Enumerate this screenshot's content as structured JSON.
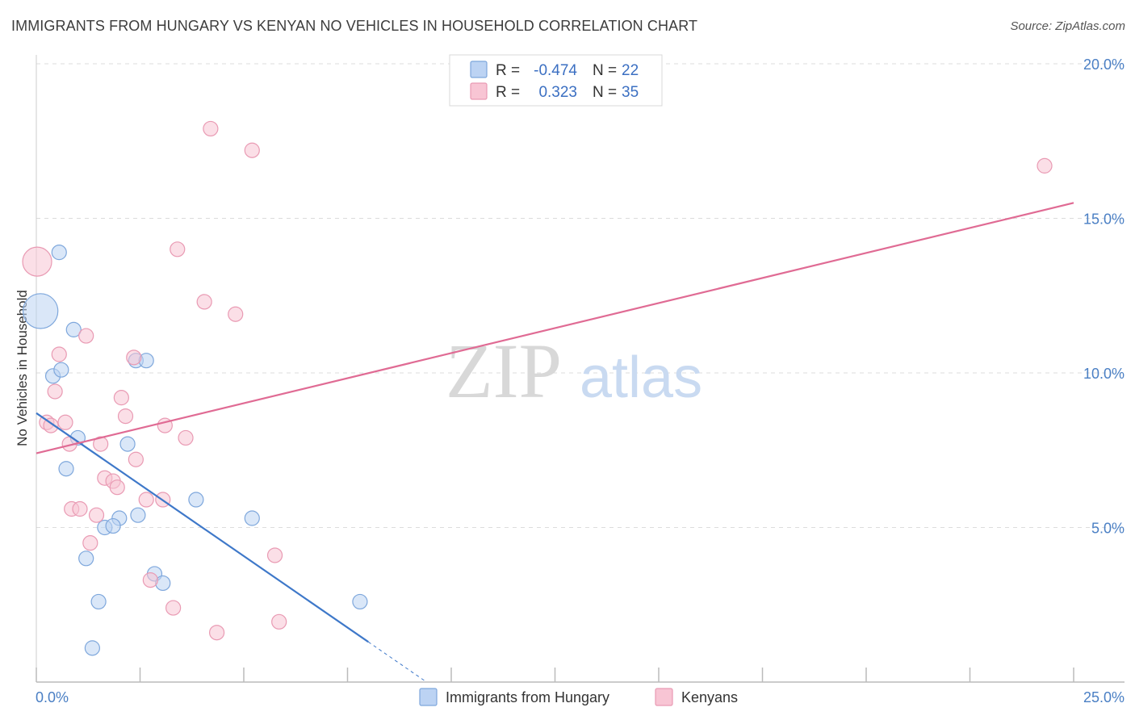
{
  "title": "IMMIGRANTS FROM HUNGARY VS KENYAN NO VEHICLES IN HOUSEHOLD CORRELATION CHART",
  "source": "Source: ZipAtlas.com",
  "watermark": {
    "zip": "ZIP",
    "atlas": "atlas"
  },
  "colors": {
    "blue_fill": "#bcd3f3",
    "blue_stroke": "#7ea7dc",
    "blue_line": "#3e78c9",
    "pink_fill": "#f8c5d4",
    "pink_stroke": "#e99ab3",
    "pink_line": "#e06b94",
    "grid": "#dcdcdc"
  },
  "legend": {
    "r_label": "R =",
    "n_label": "N =",
    "rows": [
      {
        "r": "-0.474",
        "n": "22"
      },
      {
        "r": "0.323",
        "n": "35"
      }
    ]
  },
  "chart_data": {
    "type": "scatter",
    "xlabel": "",
    "ylabel": "No Vehicles in Household",
    "xlim": [
      0,
      25
    ],
    "ylim": [
      0,
      20
    ],
    "x_tick_labels": [
      "0.0%",
      "25.0%"
    ],
    "y_ticks": [
      5,
      10,
      15,
      20
    ],
    "y_tick_labels": [
      "5.0%",
      "10.0%",
      "15.0%",
      "20.0%"
    ],
    "legend_placement": "top-center",
    "grid": true,
    "series": [
      {
        "name": "Immigrants from Hungary",
        "color": "#bcd3f3",
        "points": [
          {
            "x": 0.1,
            "y": 12.0,
            "s": 2.4
          },
          {
            "x": 0.55,
            "y": 13.9
          },
          {
            "x": 0.9,
            "y": 11.4
          },
          {
            "x": 0.4,
            "y": 9.9
          },
          {
            "x": 0.6,
            "y": 10.1
          },
          {
            "x": 2.4,
            "y": 10.4
          },
          {
            "x": 2.65,
            "y": 10.4
          },
          {
            "x": 1.0,
            "y": 7.9
          },
          {
            "x": 2.2,
            "y": 7.7
          },
          {
            "x": 0.72,
            "y": 6.9
          },
          {
            "x": 3.85,
            "y": 5.9
          },
          {
            "x": 5.2,
            "y": 5.3
          },
          {
            "x": 2.45,
            "y": 5.4
          },
          {
            "x": 2.0,
            "y": 5.3
          },
          {
            "x": 1.65,
            "y": 5.0
          },
          {
            "x": 1.85,
            "y": 5.05
          },
          {
            "x": 1.2,
            "y": 4.0
          },
          {
            "x": 2.85,
            "y": 3.5
          },
          {
            "x": 3.05,
            "y": 3.2
          },
          {
            "x": 1.5,
            "y": 2.6
          },
          {
            "x": 7.8,
            "y": 2.6
          },
          {
            "x": 1.35,
            "y": 1.1
          }
        ]
      },
      {
        "name": "Kenyans",
        "color": "#f8c5d4",
        "points": [
          {
            "x": 0.02,
            "y": 13.6,
            "s": 2.0
          },
          {
            "x": 4.2,
            "y": 17.9
          },
          {
            "x": 5.2,
            "y": 17.2
          },
          {
            "x": 24.3,
            "y": 16.7
          },
          {
            "x": 3.4,
            "y": 14.0
          },
          {
            "x": 4.05,
            "y": 12.3
          },
          {
            "x": 4.8,
            "y": 11.9
          },
          {
            "x": 1.2,
            "y": 11.2
          },
          {
            "x": 0.55,
            "y": 10.6
          },
          {
            "x": 2.35,
            "y": 10.5
          },
          {
            "x": 0.45,
            "y": 9.4
          },
          {
            "x": 2.05,
            "y": 9.2
          },
          {
            "x": 0.25,
            "y": 8.4
          },
          {
            "x": 0.35,
            "y": 8.3
          },
          {
            "x": 0.7,
            "y": 8.4
          },
          {
            "x": 2.15,
            "y": 8.6
          },
          {
            "x": 3.1,
            "y": 8.3
          },
          {
            "x": 3.6,
            "y": 7.9
          },
          {
            "x": 0.8,
            "y": 7.7
          },
          {
            "x": 1.55,
            "y": 7.7
          },
          {
            "x": 2.4,
            "y": 7.2
          },
          {
            "x": 1.65,
            "y": 6.6
          },
          {
            "x": 1.85,
            "y": 6.5
          },
          {
            "x": 1.95,
            "y": 6.3
          },
          {
            "x": 2.65,
            "y": 5.9
          },
          {
            "x": 3.05,
            "y": 5.9
          },
          {
            "x": 0.85,
            "y": 5.6
          },
          {
            "x": 1.05,
            "y": 5.6
          },
          {
            "x": 1.45,
            "y": 5.4
          },
          {
            "x": 1.3,
            "y": 4.5
          },
          {
            "x": 5.75,
            "y": 4.1
          },
          {
            "x": 2.75,
            "y": 3.3
          },
          {
            "x": 3.3,
            "y": 2.4
          },
          {
            "x": 4.35,
            "y": 1.6
          },
          {
            "x": 5.85,
            "y": 1.95
          }
        ]
      }
    ],
    "trendlines": [
      {
        "series": "Immigrants from Hungary",
        "x0": 0,
        "y0": 8.7,
        "x1": 8.0,
        "y1": 1.3,
        "dash_to_x": 9.4
      },
      {
        "series": "Kenyans",
        "x0": 0,
        "y0": 7.4,
        "x1": 25.0,
        "y1": 15.5
      }
    ]
  }
}
